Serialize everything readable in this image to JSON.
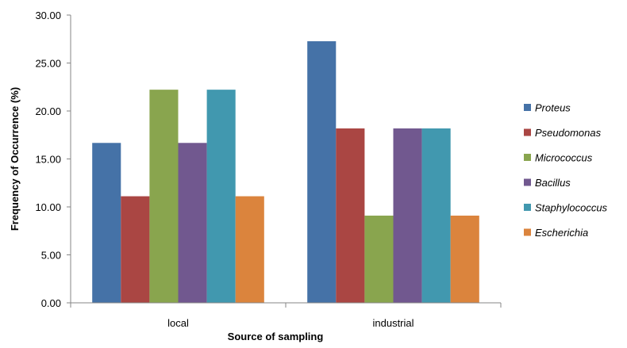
{
  "chart_data": {
    "type": "bar",
    "title": "",
    "xlabel": "Source of sampling",
    "ylabel": "Frequency of Occurrence (%)",
    "ylim": [
      0,
      30
    ],
    "yticks": [
      "0.00",
      "5.00",
      "10.00",
      "15.00",
      "20.00",
      "25.00",
      "30.00"
    ],
    "categories": [
      "local",
      "industrial"
    ],
    "grid": false,
    "legend_position": "right",
    "series": [
      {
        "name": "Proteus",
        "color": "#4572A7",
        "values": [
          16.67,
          27.27
        ]
      },
      {
        "name": "Pseudomonas",
        "color": "#AA4643",
        "values": [
          11.11,
          18.18
        ]
      },
      {
        "name": "Micrococcus",
        "color": "#89A54E",
        "values": [
          22.22,
          9.09
        ]
      },
      {
        "name": "Bacillus",
        "color": "#71588F",
        "values": [
          16.67,
          18.18
        ]
      },
      {
        "name": "Staphylococcus",
        "color": "#4198AF",
        "values": [
          22.22,
          18.18
        ]
      },
      {
        "name": "Escherichia",
        "color": "#DB843D",
        "values": [
          11.11,
          9.09
        ]
      }
    ]
  }
}
